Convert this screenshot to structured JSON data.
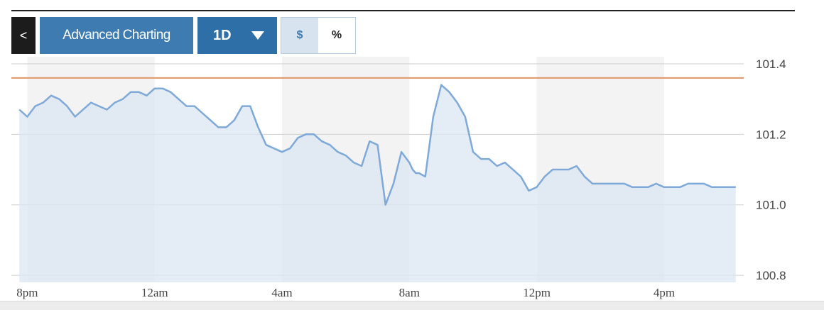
{
  "toolbar": {
    "back_label": "<",
    "advanced_charting_label": "Advanced Charting",
    "range_label": "1D",
    "range_icon": "caret-down-icon",
    "mode_dollar_label": "$",
    "mode_percent_label": "%",
    "active_mode": "$"
  },
  "colors": {
    "line": "#7fa9d8",
    "area": "#dbe7f1",
    "reference_line": "#e0956a",
    "band": "#f3f3f3",
    "button": "#3d7bb0"
  },
  "chart_data": {
    "type": "area",
    "title": "",
    "xlabel": "",
    "ylabel": "",
    "x_tick_labels": [
      "8pm",
      "12am",
      "4am",
      "8am",
      "12pm",
      "4pm"
    ],
    "x_ticks_hours": [
      20,
      24,
      28,
      32,
      36,
      40
    ],
    "xlim_hours": [
      19.5,
      42.5
    ],
    "y_tick_labels": [
      "101.4",
      "101.2",
      "101.0",
      "100.8"
    ],
    "y_ticks": [
      101.4,
      101.2,
      101.0,
      100.8
    ],
    "ylim": [
      100.78,
      101.42
    ],
    "reference_value": 101.36,
    "grid": "horizontal",
    "alternating_time_bands": true,
    "series": [
      {
        "x_hours": [
          19.75,
          20.0,
          20.25,
          20.5,
          20.75,
          21.0,
          21.25,
          21.5,
          21.75,
          22.0,
          22.25,
          22.5,
          22.75,
          23.0,
          23.25,
          23.5,
          23.75,
          24.0,
          24.25,
          24.5,
          24.75,
          25.0,
          25.25,
          25.5,
          25.75,
          26.0,
          26.25,
          26.5,
          26.75,
          27.0,
          27.25,
          27.5,
          27.75,
          28.0,
          28.25,
          28.5,
          28.75,
          29.0,
          29.25,
          29.5,
          29.75,
          30.0,
          30.25,
          30.5,
          30.75,
          31.0,
          31.25,
          31.5,
          31.75,
          32.0,
          32.1,
          32.2,
          32.3,
          32.5,
          32.75,
          33.0,
          33.25,
          33.5,
          33.75,
          34.0,
          34.25,
          34.5,
          34.75,
          35.0,
          35.25,
          35.5,
          35.75,
          36.0,
          36.25,
          36.5,
          36.75,
          37.0,
          37.25,
          37.5,
          37.75,
          38.0,
          38.25,
          38.5,
          38.75,
          39.0,
          39.25,
          39.5,
          39.75,
          40.0,
          40.25,
          40.5,
          40.75,
          41.0,
          41.25,
          41.5,
          41.75,
          42.0,
          42.25
        ],
        "values": [
          101.27,
          101.25,
          101.28,
          101.29,
          101.31,
          101.3,
          101.28,
          101.25,
          101.27,
          101.29,
          101.28,
          101.27,
          101.29,
          101.3,
          101.32,
          101.32,
          101.31,
          101.33,
          101.33,
          101.32,
          101.3,
          101.28,
          101.28,
          101.26,
          101.24,
          101.22,
          101.22,
          101.24,
          101.28,
          101.28,
          101.22,
          101.17,
          101.16,
          101.15,
          101.16,
          101.19,
          101.2,
          101.2,
          101.18,
          101.17,
          101.15,
          101.14,
          101.12,
          101.11,
          101.18,
          101.17,
          101.0,
          101.06,
          101.15,
          101.12,
          101.1,
          101.09,
          101.09,
          101.08,
          101.25,
          101.34,
          101.32,
          101.29,
          101.25,
          101.15,
          101.13,
          101.13,
          101.11,
          101.12,
          101.1,
          101.08,
          101.04,
          101.05,
          101.08,
          101.1,
          101.1,
          101.1,
          101.11,
          101.08,
          101.06,
          101.06,
          101.06,
          101.06,
          101.06,
          101.05,
          101.05,
          101.05,
          101.06,
          101.05,
          101.05,
          101.05,
          101.06,
          101.06,
          101.06,
          101.05,
          101.05,
          101.05,
          101.05
        ]
      }
    ]
  }
}
